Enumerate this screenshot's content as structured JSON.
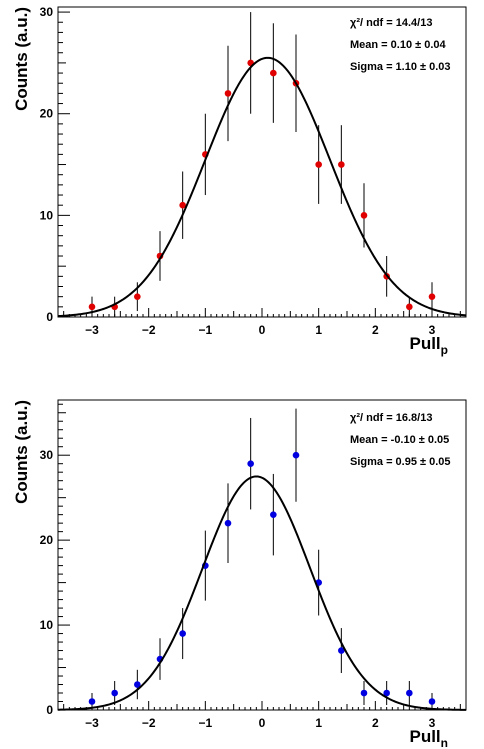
{
  "chart_data": [
    {
      "type": "scatter",
      "ylabel": "Counts (a.u.)",
      "xlabel": "Pull",
      "xlabel_sub": "p",
      "xlim": [
        -3.6,
        3.6
      ],
      "ylim": [
        0,
        30.5
      ],
      "xticks": [
        -3,
        -2,
        -1,
        0,
        1,
        2,
        3
      ],
      "yticks": [
        0,
        10,
        20,
        30
      ],
      "marker_color": "#e00000",
      "stats": {
        "chi2_label": "χ²/ ndf = 14.4/13",
        "mean_label": "Mean = 0.10 ± 0.04",
        "sigma_label": "Sigma = 1.10 ± 0.03"
      },
      "fit": {
        "amplitude": 25.5,
        "mean": 0.1,
        "sigma": 1.1
      },
      "series": [
        {
          "x": [
            -3.0,
            -2.6,
            -2.2,
            -1.8,
            -1.4,
            -1.0,
            -0.6,
            -0.2,
            0.2,
            0.6,
            1.0,
            1.4,
            1.8,
            2.2,
            2.6,
            3.0
          ],
          "y": [
            1,
            1,
            2,
            6,
            11,
            16,
            22,
            25,
            24,
            23,
            15,
            15,
            10,
            4,
            1,
            2
          ]
        }
      ]
    },
    {
      "type": "scatter",
      "ylabel": "Counts (a.u.)",
      "xlabel": "Pull",
      "xlabel_sub": "n",
      "xlim": [
        -3.6,
        3.6
      ],
      "ylim": [
        0,
        36.5
      ],
      "xticks": [
        -3,
        -2,
        -1,
        0,
        1,
        2,
        3
      ],
      "yticks": [
        0,
        10,
        20,
        30
      ],
      "marker_color": "#0000e0",
      "stats": {
        "chi2_label": "χ²/ ndf = 16.8/13",
        "mean_label": "Mean = -0.10 ± 0.05",
        "sigma_label": "Sigma = 0.95 ± 0.05"
      },
      "fit": {
        "amplitude": 27.5,
        "mean": -0.1,
        "sigma": 0.95
      },
      "series": [
        {
          "x": [
            -3.0,
            -2.6,
            -2.2,
            -1.8,
            -1.4,
            -1.0,
            -0.6,
            -0.2,
            0.2,
            0.6,
            1.0,
            1.4,
            1.8,
            2.2,
            2.6,
            3.0
          ],
          "y": [
            1,
            2,
            3,
            6,
            9,
            17,
            22,
            29,
            23,
            30,
            15,
            7,
            2,
            2,
            2,
            1
          ]
        }
      ]
    }
  ]
}
